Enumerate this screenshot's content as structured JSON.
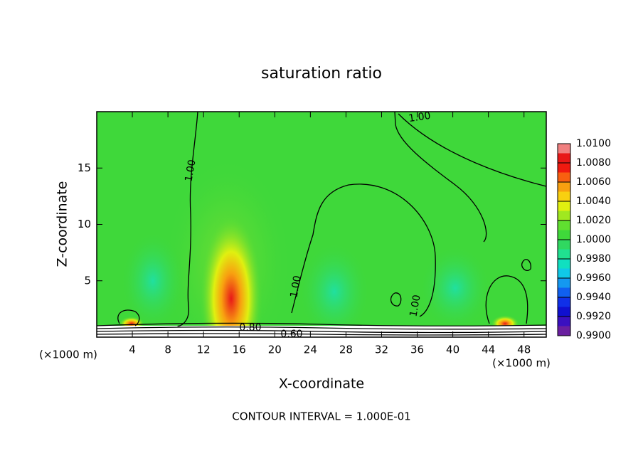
{
  "chart_data": {
    "type": "contour",
    "title": "saturation ratio",
    "xlabel": "X-coordinate",
    "ylabel": "Z-coordinate",
    "x_unit_labels": [
      "(×1000 m)",
      "(×1000 m)"
    ],
    "xlim": [
      0,
      50.5
    ],
    "ylim": [
      0,
      20
    ],
    "xticks": [
      4,
      8,
      12,
      16,
      20,
      24,
      28,
      32,
      36,
      40,
      44,
      48
    ],
    "yticks": [
      5,
      10,
      15
    ],
    "background_color": "#3fd83a",
    "colorbar": {
      "clim": [
        0.99,
        1.01
      ],
      "ticks": [
        {
          "value": 0.99,
          "label": "0.9900"
        },
        {
          "value": 0.992,
          "label": "0.9920"
        },
        {
          "value": 0.994,
          "label": "0.9940"
        },
        {
          "value": 0.996,
          "label": "0.9960"
        },
        {
          "value": 0.998,
          "label": "0.9980"
        },
        {
          "value": 1.0,
          "label": "1.0000"
        },
        {
          "value": 1.002,
          "label": "1.0020"
        },
        {
          "value": 1.004,
          "label": "1.0040"
        },
        {
          "value": 1.006,
          "label": "1.0060"
        },
        {
          "value": 1.008,
          "label": "1.0080"
        },
        {
          "value": 1.01,
          "label": "1.0100"
        }
      ],
      "colors": [
        "#6a1fa0",
        "#3a10c0",
        "#1010d0",
        "#1030e8",
        "#1060f0",
        "#1498f0",
        "#10c8e8",
        "#10e0c0",
        "#20e090",
        "#30d860",
        "#3fd83a",
        "#60e030",
        "#a0e820",
        "#e0f010",
        "#f8d010",
        "#f8a010",
        "#f86010",
        "#f01a10",
        "#e81818",
        "#f08080"
      ]
    },
    "contour_labels": [
      "1.00",
      "1.00",
      "1.00",
      "1.00",
      "0.80",
      "0.60"
    ],
    "footer": "CONTOUR INTERVAL = 1.000E-01"
  }
}
